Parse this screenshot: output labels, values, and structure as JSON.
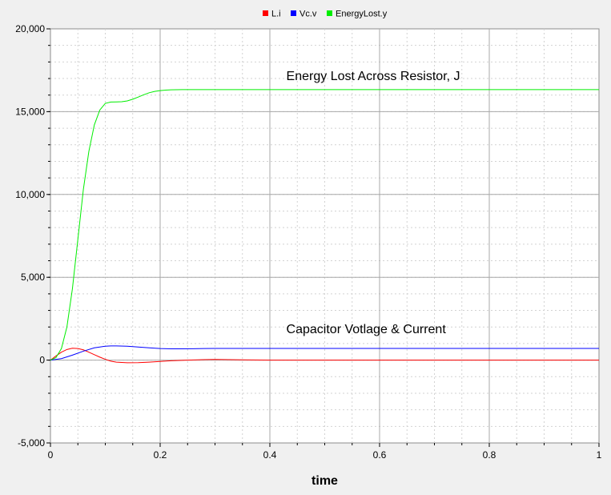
{
  "chart_data": {
    "type": "line",
    "title": "",
    "xlabel": "time",
    "ylabel": "",
    "xlim": [
      0,
      1
    ],
    "ylim": [
      -5000,
      20000
    ],
    "x_ticks": [
      0,
      0.2,
      0.4,
      0.6,
      0.8,
      1
    ],
    "x_tick_labels": [
      "0",
      "0.2",
      "0.4",
      "0.6",
      "0.8",
      "1"
    ],
    "y_ticks": [
      -5000,
      0,
      5000,
      10000,
      15000,
      20000
    ],
    "y_tick_labels": [
      "-5,000",
      "0",
      "5,000",
      "10,000",
      "15,000",
      "20,000"
    ],
    "grid": true,
    "legend_position": "top-center",
    "series": [
      {
        "name": "L.i",
        "color": "#ff0000",
        "x": [
          0,
          0.01,
          0.02,
          0.03,
          0.04,
          0.05,
          0.06,
          0.07,
          0.08,
          0.09,
          0.1,
          0.11,
          0.12,
          0.14,
          0.16,
          0.18,
          0.2,
          0.22,
          0.25,
          0.28,
          0.3,
          0.35,
          0.4,
          0.5,
          0.6,
          0.7,
          0.8,
          0.9,
          1
        ],
        "y": [
          0,
          250,
          480,
          640,
          720,
          700,
          620,
          480,
          330,
          180,
          50,
          -60,
          -120,
          -160,
          -150,
          -120,
          -80,
          -40,
          0,
          30,
          40,
          20,
          0,
          0,
          0,
          0,
          0,
          0,
          0
        ]
      },
      {
        "name": "Vc.v",
        "color": "#0000ff",
        "x": [
          0,
          0.02,
          0.04,
          0.06,
          0.08,
          0.1,
          0.11,
          0.12,
          0.14,
          0.16,
          0.18,
          0.2,
          0.22,
          0.24,
          0.26,
          0.28,
          0.3,
          0.35,
          0.4,
          0.5,
          0.6,
          0.7,
          0.8,
          0.9,
          1
        ],
        "y": [
          0,
          90,
          300,
          540,
          740,
          840,
          860,
          860,
          840,
          790,
          740,
          700,
          680,
          680,
          690,
          700,
          705,
          705,
          705,
          705,
          705,
          705,
          705,
          705,
          705
        ]
      },
      {
        "name": "EnergyLost.y",
        "color": "#00ee00",
        "x": [
          0,
          0.01,
          0.02,
          0.03,
          0.04,
          0.05,
          0.06,
          0.07,
          0.08,
          0.09,
          0.1,
          0.11,
          0.12,
          0.13,
          0.14,
          0.15,
          0.16,
          0.17,
          0.18,
          0.19,
          0.2,
          0.21,
          0.22,
          0.24,
          0.26,
          0.3,
          0.4,
          0.5,
          0.6,
          0.7,
          0.8,
          0.9,
          1
        ],
        "y": [
          0,
          150,
          700,
          2000,
          4300,
          7300,
          10300,
          12600,
          14200,
          15100,
          15500,
          15580,
          15590,
          15600,
          15650,
          15750,
          15880,
          16020,
          16140,
          16220,
          16270,
          16300,
          16320,
          16330,
          16330,
          16330,
          16330,
          16330,
          16330,
          16330,
          16330,
          16330,
          16330
        ]
      }
    ],
    "annotations": [
      {
        "text": "Energy Lost Across Resistor, J",
        "x": 0.43,
        "y": 16900
      },
      {
        "text": "Capacitor Votlage & Current",
        "x": 0.43,
        "y": 1620
      }
    ]
  }
}
